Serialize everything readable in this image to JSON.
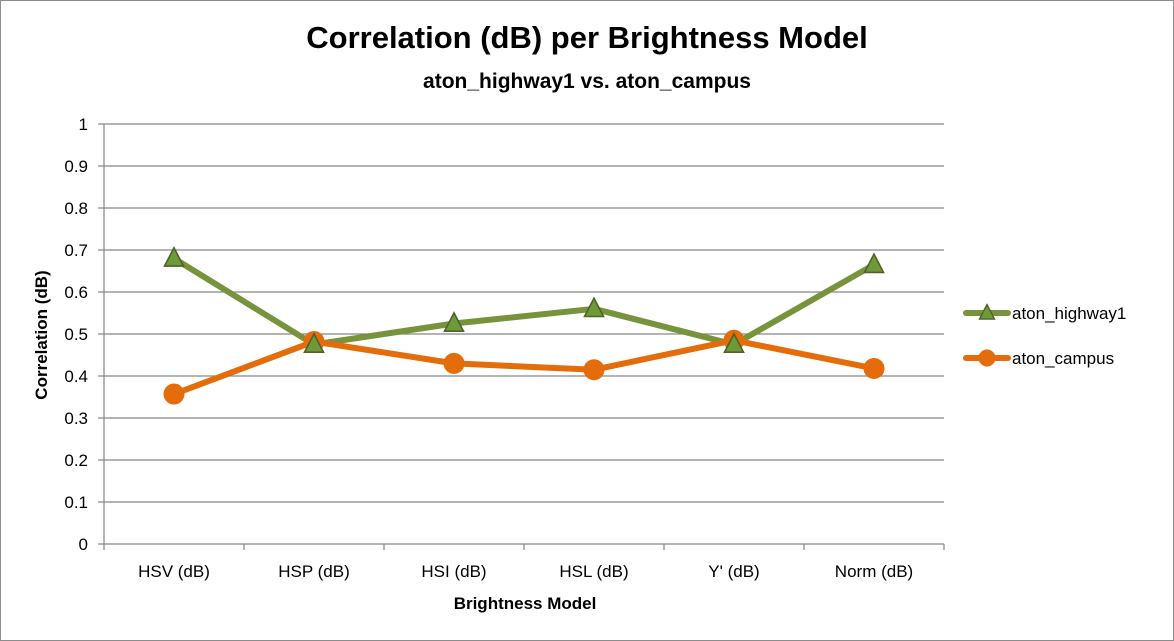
{
  "chart_data": {
    "type": "line",
    "title": "Correlation (dB) per Brightness Model",
    "subtitle": "aton_highway1 vs. aton_campus",
    "xlabel": "Brightness Model",
    "ylabel": "Correlation (dB)",
    "categories": [
      "HSV (dB)",
      "HSP (dB)",
      "HSI (dB)",
      "HSL (dB)",
      "Y' (dB)",
      "Norm (dB)"
    ],
    "ylim": [
      0,
      1
    ],
    "yticks": [
      "0",
      "0.1",
      "0.2",
      "0.3",
      "0.4",
      "0.5",
      "0.6",
      "0.7",
      "0.8",
      "0.9",
      "1"
    ],
    "grid": true,
    "legend_position": "right",
    "series": [
      {
        "name": "aton_highway1",
        "marker": "triangle",
        "color": "#77933c",
        "marker_fill": "#6f9a3a",
        "marker_stroke": "#4f6228",
        "values": [
          0.68,
          0.475,
          0.525,
          0.56,
          0.475,
          0.665
        ]
      },
      {
        "name": "aton_campus",
        "marker": "circle",
        "color": "#e46c0a",
        "marker_fill": "#e46c0a",
        "marker_stroke": "#e46c0a",
        "values": [
          0.357,
          0.482,
          0.43,
          0.415,
          0.485,
          0.418
        ]
      }
    ]
  }
}
